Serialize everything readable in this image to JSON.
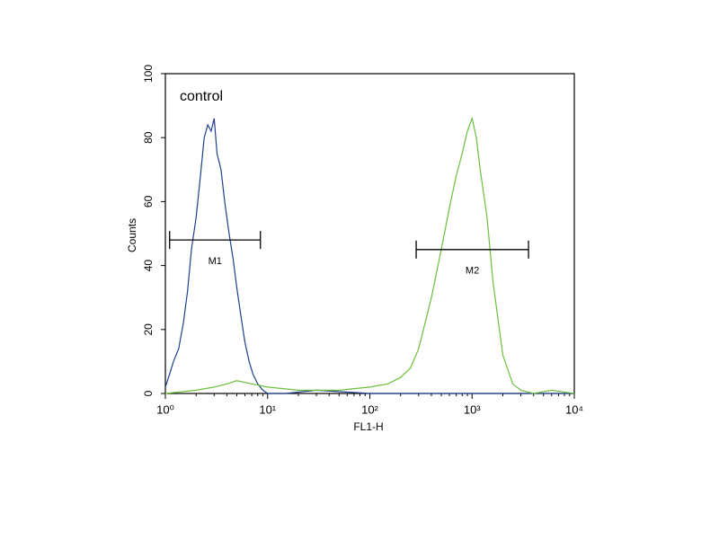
{
  "chart_data": {
    "type": "line",
    "annotation": "control",
    "xlabel": "FL1-H",
    "ylabel": "Counts",
    "xscale": "log",
    "xlim": [
      1,
      10000
    ],
    "xticks": [
      {
        "value": 1,
        "label": "10⁰"
      },
      {
        "value": 10,
        "label": "10¹"
      },
      {
        "value": 100,
        "label": "10²"
      },
      {
        "value": 1000,
        "label": "10³"
      },
      {
        "value": 10000,
        "label": "10⁴"
      }
    ],
    "ylim": [
      0,
      100
    ],
    "yticks": [
      0,
      20,
      40,
      60,
      80,
      100
    ],
    "series": [
      {
        "color": "#1f3f8f",
        "x": [
          1.0,
          1.1,
          1.2,
          1.35,
          1.5,
          1.65,
          1.8,
          2.0,
          2.2,
          2.4,
          2.6,
          2.8,
          3.0,
          3.2,
          3.5,
          3.8,
          4.2,
          4.6,
          5.0,
          5.5,
          6.0,
          6.6,
          7.2,
          8.0,
          9.0,
          10,
          15,
          30,
          100,
          300,
          1000,
          3000,
          10000
        ],
        "values": [
          2,
          6,
          10,
          14,
          22,
          32,
          45,
          55,
          68,
          80,
          84,
          82,
          86,
          75,
          70,
          60,
          50,
          42,
          33,
          24,
          16,
          10,
          6,
          3,
          1,
          0,
          0,
          1,
          0,
          0,
          0,
          0,
          0
        ]
      },
      {
        "color": "#6cbf3f",
        "x": [
          1,
          2,
          3,
          4,
          5,
          7,
          10,
          20,
          50,
          100,
          150,
          200,
          250,
          300,
          400,
          500,
          600,
          700,
          800,
          900,
          1000,
          1100,
          1200,
          1400,
          1600,
          2000,
          2500,
          3000,
          4000,
          6000,
          10000
        ],
        "values": [
          0,
          1,
          2,
          3,
          4,
          3,
          2,
          1,
          1,
          2,
          3,
          5,
          8,
          14,
          30,
          45,
          58,
          68,
          75,
          82,
          86,
          80,
          70,
          55,
          35,
          12,
          3,
          1,
          0,
          1,
          0
        ]
      }
    ],
    "markers": [
      {
        "label": "M1",
        "range": [
          1.1,
          8.5
        ],
        "y": 48
      },
      {
        "label": "M2",
        "range": [
          284,
          3565
        ],
        "y": 45
      }
    ]
  }
}
